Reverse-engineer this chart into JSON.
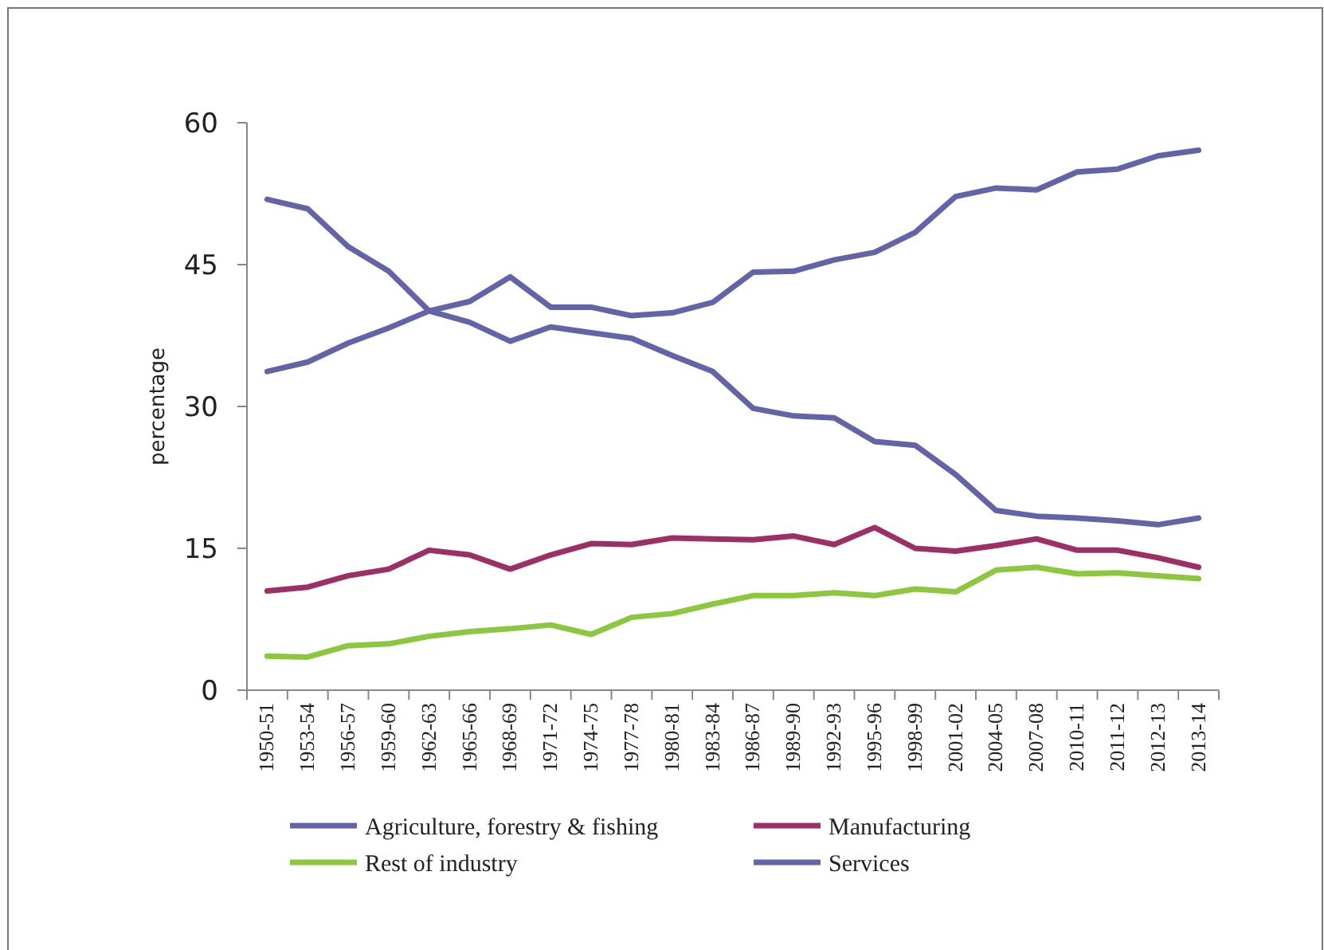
{
  "chart_data": {
    "type": "line",
    "ylabel": "percentage",
    "categories": [
      "1950-51",
      "1953-54",
      "1956-57",
      "1959-60",
      "1962-63",
      "1965-66",
      "1968-69",
      "1971-72",
      "1974-75",
      "1977-78",
      "1980-81",
      "1983-84",
      "1986-87",
      "1989-90",
      "1992-93",
      "1995-96",
      "1998-99",
      "2001-02",
      "2004-05",
      "2007-08",
      "2010-11",
      "2011-12",
      "2012-13",
      "2013-14"
    ],
    "series": [
      {
        "name": "Agriculture, forestry & fishing",
        "color": "#6264a7",
        "values": [
          51.9,
          50.9,
          46.9,
          44.3,
          40.1,
          38.9,
          36.9,
          38.4,
          37.8,
          37.2,
          35.4,
          33.7,
          29.8,
          29.0,
          28.8,
          26.3,
          25.9,
          22.8,
          19.0,
          18.4,
          18.2,
          17.9,
          17.5,
          18.2
        ]
      },
      {
        "name": "Manufacturing",
        "color": "#9b2f66",
        "values": [
          10.5,
          10.9,
          12.1,
          12.8,
          14.8,
          14.3,
          12.8,
          14.3,
          15.5,
          15.4,
          16.1,
          16.0,
          15.9,
          16.3,
          15.4,
          17.2,
          15.0,
          14.7,
          15.3,
          16.0,
          14.8,
          14.8,
          14.0,
          13.0
        ]
      },
      {
        "name": "Rest of industry",
        "color": "#8dc63f",
        "values": [
          3.6,
          3.5,
          4.7,
          4.9,
          5.7,
          6.2,
          6.5,
          6.9,
          5.9,
          7.7,
          8.1,
          9.1,
          10.0,
          10.0,
          10.3,
          10.0,
          10.7,
          10.4,
          12.7,
          13.0,
          12.3,
          12.4,
          12.1,
          11.8
        ]
      },
      {
        "name": "Services",
        "color": "#6264a7",
        "values": [
          33.7,
          34.7,
          36.7,
          38.3,
          40.1,
          41.1,
          43.7,
          40.5,
          40.5,
          39.6,
          39.9,
          41.0,
          44.2,
          44.3,
          45.5,
          46.3,
          48.4,
          52.2,
          53.1,
          52.9,
          54.8,
          55.1,
          56.5,
          57.1
        ]
      }
    ],
    "ylim": [
      0,
      60
    ],
    "yticks": [
      0,
      15,
      30,
      45,
      60
    ],
    "grid": false,
    "legend": "bottom",
    "marker": "none",
    "line_style": "solid"
  }
}
